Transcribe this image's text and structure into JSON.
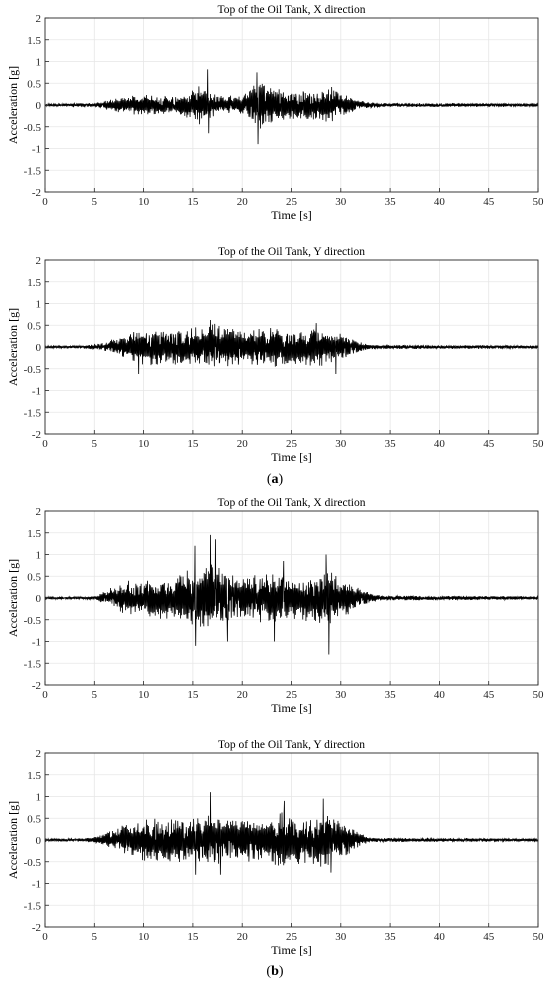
{
  "panels": [
    {
      "label_open": "(",
      "label_letter": "a",
      "label_close": ")"
    },
    {
      "label_open": "(",
      "label_letter": "b",
      "label_close": ")"
    }
  ],
  "chart_data": [
    {
      "type": "line",
      "title": "Top of the Oil Tank, X direction",
      "xlabel": "Time [s]",
      "ylabel": "Acceleration [g]",
      "xlim": [
        0,
        50
      ],
      "ylim": [
        -2,
        2
      ],
      "xticks": [
        "0",
        "5",
        "10",
        "15",
        "20",
        "25",
        "30",
        "35",
        "40",
        "45",
        "50"
      ],
      "yticks": [
        "2",
        "1.5",
        "1",
        "0.5",
        "0",
        "-0.5",
        "-1",
        "-1.5",
        "-2"
      ],
      "grid": true,
      "line_color": "#000000",
      "envelope": {
        "t": [
          0,
          5,
          7,
          10,
          13,
          15,
          16,
          17,
          18,
          20,
          21,
          22,
          23,
          25,
          28,
          29,
          30,
          32,
          34,
          50
        ],
        "a": [
          0.03,
          0.05,
          0.15,
          0.25,
          0.2,
          0.35,
          0.5,
          0.3,
          0.2,
          0.25,
          0.45,
          0.6,
          0.45,
          0.35,
          0.35,
          0.45,
          0.3,
          0.1,
          0.05,
          0.04
        ]
      },
      "peaks": [
        {
          "t": 16.5,
          "a": 0.82
        },
        {
          "t": 16.6,
          "a": -0.65
        },
        {
          "t": 21.5,
          "a": 0.75
        },
        {
          "t": 21.6,
          "a": -0.9
        }
      ]
    },
    {
      "type": "line",
      "title": "Top of the Oil Tank, Y direction",
      "xlabel": "Time [s]",
      "ylabel": "Acceleration [g]",
      "xlim": [
        0,
        50
      ],
      "ylim": [
        -2,
        2
      ],
      "xticks": [
        "0",
        "5",
        "10",
        "15",
        "20",
        "25",
        "30",
        "35",
        "40",
        "45",
        "50"
      ],
      "yticks": [
        "2",
        "1.5",
        "1",
        "0.5",
        "0",
        "-0.5",
        "-1",
        "-1.5",
        "-2"
      ],
      "grid": true,
      "line_color": "#000000",
      "envelope": {
        "t": [
          0,
          4,
          6,
          8,
          10,
          15,
          17,
          20,
          23,
          25,
          28,
          30,
          31,
          33,
          50
        ],
        "a": [
          0.03,
          0.04,
          0.1,
          0.3,
          0.42,
          0.45,
          0.55,
          0.42,
          0.45,
          0.48,
          0.45,
          0.35,
          0.2,
          0.05,
          0.04
        ]
      },
      "peaks": [
        {
          "t": 16.8,
          "a": 0.62
        },
        {
          "t": 9.5,
          "a": -0.62
        },
        {
          "t": 29.5,
          "a": -0.62
        },
        {
          "t": 27.5,
          "a": 0.55
        }
      ]
    },
    {
      "type": "line",
      "title": "Top of the Oil Tank, X direction",
      "xlabel": "Time [s]",
      "ylabel": "Acceleration [g]",
      "xlim": [
        0,
        50
      ],
      "ylim": [
        -2,
        2
      ],
      "xticks": [
        "0",
        "5",
        "10",
        "15",
        "20",
        "25",
        "30",
        "35",
        "40",
        "45",
        "50"
      ],
      "yticks": [
        "2",
        "1.5",
        "1",
        "0.5",
        "0",
        "-0.5",
        "-1",
        "-1.5",
        "-2"
      ],
      "grid": true,
      "line_color": "#000000",
      "envelope": {
        "t": [
          0,
          5,
          6,
          8,
          10,
          13,
          15,
          17,
          19,
          20,
          22,
          24,
          25,
          27,
          29,
          30,
          32,
          34,
          50
        ],
        "a": [
          0.03,
          0.04,
          0.15,
          0.4,
          0.45,
          0.5,
          0.7,
          0.8,
          0.6,
          0.5,
          0.6,
          0.55,
          0.5,
          0.55,
          0.7,
          0.5,
          0.2,
          0.06,
          0.04
        ]
      },
      "peaks": [
        {
          "t": 15.2,
          "a": 1.2
        },
        {
          "t": 15.3,
          "a": -1.1
        },
        {
          "t": 16.8,
          "a": 1.45
        },
        {
          "t": 17.3,
          "a": 1.35
        },
        {
          "t": 18.5,
          "a": -1.0
        },
        {
          "t": 23.3,
          "a": -1.0
        },
        {
          "t": 24.2,
          "a": 0.85
        },
        {
          "t": 28.5,
          "a": 1.0
        },
        {
          "t": 28.8,
          "a": -1.3
        }
      ]
    },
    {
      "type": "line",
      "title": "Top of the Oil Tank, Y direction",
      "xlabel": "Time [s]",
      "ylabel": "Acceleration [g]",
      "xlim": [
        0,
        50
      ],
      "ylim": [
        -2,
        2
      ],
      "xticks": [
        "0",
        "5",
        "10",
        "15",
        "20",
        "25",
        "30",
        "35",
        "40",
        "45",
        "50"
      ],
      "yticks": [
        "2",
        "1.5",
        "1",
        "0.5",
        "0",
        "-0.5",
        "-1",
        "-1.5",
        "-2"
      ],
      "grid": true,
      "line_color": "#000000",
      "envelope": {
        "t": [
          0,
          4,
          5,
          6,
          8,
          10,
          12,
          15,
          17,
          19,
          21,
          23,
          24,
          26,
          28,
          30,
          31,
          33,
          50
        ],
        "a": [
          0.03,
          0.04,
          0.08,
          0.15,
          0.35,
          0.5,
          0.55,
          0.5,
          0.6,
          0.55,
          0.5,
          0.55,
          0.75,
          0.55,
          0.65,
          0.45,
          0.3,
          0.05,
          0.04
        ]
      },
      "peaks": [
        {
          "t": 16.8,
          "a": 1.1
        },
        {
          "t": 24.3,
          "a": 0.9
        },
        {
          "t": 28.2,
          "a": 0.95
        },
        {
          "t": 17.8,
          "a": -0.8
        },
        {
          "t": 15.3,
          "a": -0.8
        },
        {
          "t": 29.0,
          "a": -0.75
        }
      ]
    }
  ]
}
